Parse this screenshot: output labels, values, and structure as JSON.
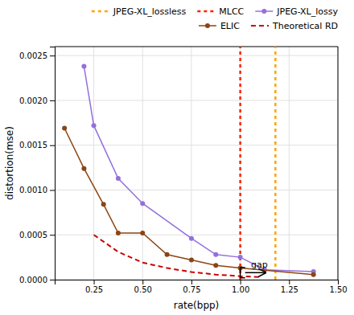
{
  "chart_data": {
    "type": "line",
    "xlabel": "rate(bpp)",
    "ylabel": "distortion(mse)",
    "xlim": [
      0.05,
      1.5
    ],
    "ylim": [
      0.0,
      0.0026
    ],
    "xticks": [
      0.25,
      {
        "value": 0.5,
        "label": "0.50"
      },
      0.75,
      {
        "value": 1.0,
        "label": "1.00"
      },
      1.25,
      {
        "value": 1.5,
        "label": "1.50"
      }
    ],
    "yticks": [
      {
        "value": 0.0,
        "label": "0.0000"
      },
      0.0005,
      {
        "value": 0.001,
        "label": "0.0010"
      },
      0.0015,
      {
        "value": 0.002,
        "label": "0.0020"
      },
      0.0025
    ],
    "grid": true,
    "legend": "top",
    "series": [
      {
        "name": "JPEG-XL_lossless",
        "type": "vline",
        "color": "#FFA500",
        "line_style": "dotted",
        "x": 1.18
      },
      {
        "name": "MLCC",
        "type": "vline",
        "color": "#FF2200",
        "line_style": "dotted",
        "x": 1.0
      },
      {
        "name": "JPEG-XL_lossy",
        "color": "#9370DB",
        "marker": "circle",
        "line_style": "solid",
        "x": [
          0.2,
          0.25,
          0.375,
          0.5,
          0.75,
          0.875,
          1.0,
          1.125,
          1.375
        ],
        "values": [
          0.00238,
          0.00172,
          0.00113,
          0.00085,
          0.00046,
          0.00028,
          0.00025,
          0.00011,
          9e-05
        ]
      },
      {
        "name": "ELIC",
        "color": "#8B4513",
        "marker": "circle",
        "line_style": "solid",
        "x": [
          0.1,
          0.2,
          0.3,
          0.375,
          0.5,
          0.625,
          0.75,
          0.875,
          1.0,
          1.375
        ],
        "values": [
          0.00169,
          0.00124,
          0.00084,
          0.00052,
          0.00052,
          0.00028,
          0.00022,
          0.00016,
          0.00013,
          5.5e-05
        ]
      },
      {
        "name": "Theoretical RD",
        "color": "#CC0000",
        "line_style": "dashed",
        "x": [
          0.25,
          0.375,
          0.5,
          0.625,
          0.75,
          0.875,
          1.0,
          1.1
        ],
        "values": [
          0.0005,
          0.00031,
          0.00019,
          0.00013,
          8.5e-05,
          5.7e-05,
          3.8e-05,
          2.8e-05
        ]
      }
    ],
    "annotations": [
      {
        "text": "gap",
        "x": 1.055,
        "y": 7.8e-05,
        "bracket": {
          "x": [
            1.0,
            1.025
          ],
          "y": [
            2e-05,
            0.000135
          ],
          "arrow_x": [
            1.025,
            1.13
          ],
          "arrow_y": 7.8e-05
        }
      }
    ]
  }
}
